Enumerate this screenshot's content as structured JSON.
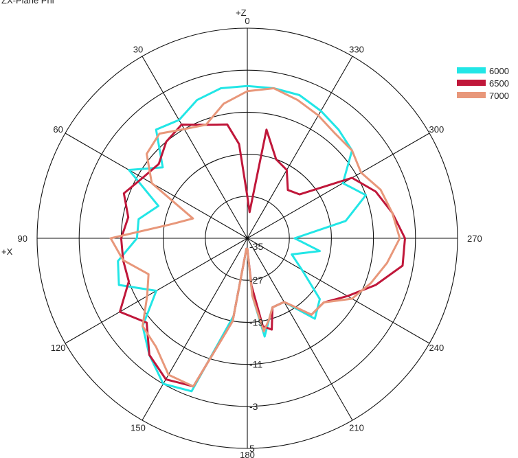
{
  "title": "ZX-Plane Phi",
  "axis_labels": {
    "top": "+Z",
    "left": "+X"
  },
  "chart_data": {
    "type": "polar",
    "title": "ZX-Plane Phi",
    "angle_ticks": [
      0,
      30,
      60,
      90,
      120,
      150,
      180,
      210,
      240,
      270,
      300,
      330
    ],
    "angle_tick_labels": [
      "0",
      "30",
      "60",
      "90",
      "120",
      "150",
      "180",
      "210",
      "240",
      "270",
      "300",
      "330"
    ],
    "angle_direction": "counterclockwise from top",
    "radial_range": [
      -35,
      5
    ],
    "radial_ticks": [
      -35,
      -27,
      -19,
      -11,
      -3,
      5
    ],
    "radial_tick_labels": [
      "-35",
      "-27",
      "-19",
      "-11",
      "-3",
      "5"
    ],
    "legend_position": "top-right",
    "series": [
      {
        "name": "6000",
        "color": "#22e6e6",
        "theta": [
          0,
          10,
          20,
          30,
          40,
          50,
          60,
          70,
          80,
          90,
          100,
          110,
          120,
          130,
          140,
          150,
          160,
          170,
          175,
          180,
          185,
          190,
          195,
          200,
          210,
          220,
          230,
          240,
          250,
          260,
          270,
          280,
          290,
          300,
          310,
          320,
          330,
          340,
          350
        ],
        "r": [
          -6,
          -6,
          -7,
          -9,
          -8,
          -14,
          -9,
          -17,
          -14,
          -14,
          -10,
          -9,
          -15,
          -9,
          -6,
          -3,
          -4,
          -20,
          -33,
          -33,
          -24,
          -16,
          -19,
          -21,
          -21,
          -15,
          -17,
          -23,
          -26,
          -21,
          -26,
          -16,
          -11,
          -14,
          -9,
          -8,
          -7,
          -6,
          -6
        ]
      },
      {
        "name": "6500",
        "color": "#c0173a",
        "theta": [
          0,
          5,
          10,
          20,
          30,
          40,
          50,
          60,
          70,
          80,
          90,
          100,
          110,
          120,
          130,
          140,
          150,
          160,
          170,
          175,
          180,
          185,
          190,
          195,
          200,
          210,
          220,
          230,
          240,
          250,
          260,
          270,
          280,
          290,
          300,
          310,
          320,
          330,
          340,
          350,
          355
        ],
        "r": [
          -27,
          -17,
          -13,
          -12,
          -10,
          -11,
          -13,
          -12,
          -10,
          -12,
          -11,
          -11,
          -11,
          -7,
          -10,
          -6,
          -4,
          -5,
          -19,
          -33,
          -33,
          -26,
          -18,
          -17,
          -21,
          -21,
          -16,
          -16,
          -13,
          -9,
          -5,
          -5,
          -7,
          -9,
          -12,
          -22,
          -23,
          -20,
          -19,
          -14,
          -30
        ]
      },
      {
        "name": "7000",
        "color": "#e8977a",
        "theta": [
          0,
          10,
          20,
          30,
          40,
          50,
          60,
          70,
          80,
          90,
          100,
          110,
          120,
          130,
          140,
          150,
          160,
          170,
          175,
          180,
          185,
          190,
          195,
          200,
          210,
          220,
          230,
          240,
          250,
          260,
          270,
          280,
          290,
          300,
          310,
          320,
          330,
          340,
          350
        ],
        "r": [
          -7,
          -9,
          -12,
          -11,
          -9,
          -10,
          -14,
          -24,
          -20,
          -9,
          -11,
          -15,
          -13,
          -9,
          -8,
          -5,
          -5,
          -19,
          -33,
          -33,
          -24,
          -17,
          -19,
          -21,
          -21,
          -16,
          -16,
          -12,
          -10,
          -8,
          -6,
          -7,
          -8,
          -10,
          -9,
          -9,
          -8,
          -7,
          -6
        ]
      }
    ]
  }
}
